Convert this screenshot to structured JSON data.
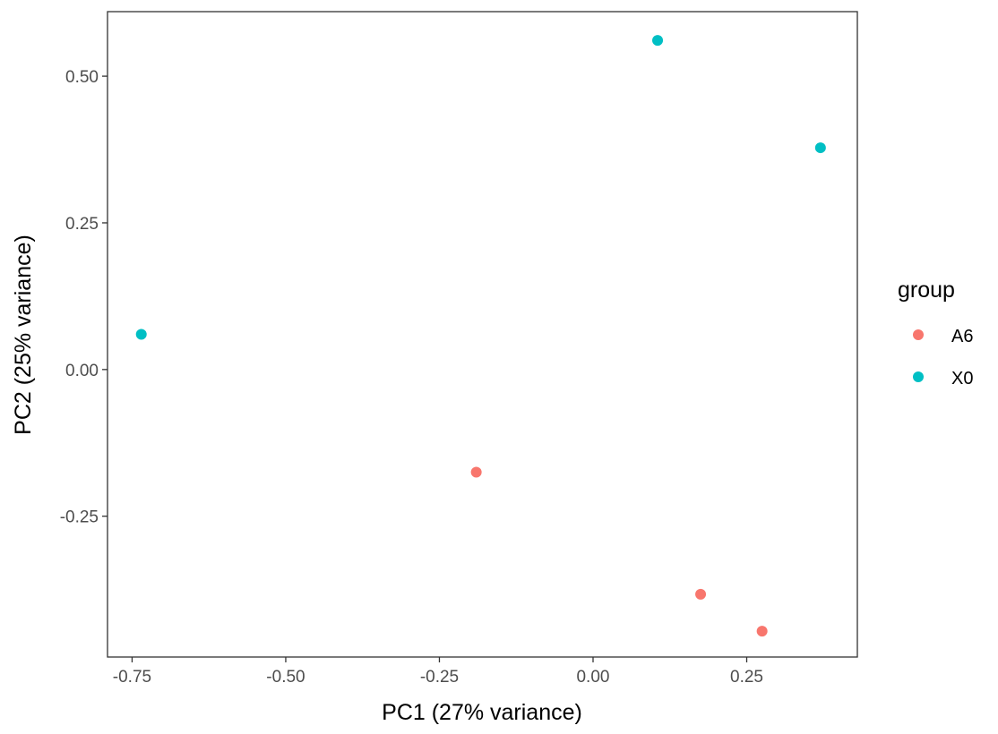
{
  "chart_data": {
    "type": "scatter",
    "title": "",
    "xlabel": "PC1 (27% variance)",
    "ylabel": "PC2 (25% variance)",
    "xlim": [
      -0.79,
      0.43
    ],
    "ylim": [
      -0.49,
      0.61
    ],
    "x_ticks": [
      -0.75,
      -0.5,
      -0.25,
      0.0,
      0.25
    ],
    "x_tick_labels": [
      "-0.75",
      "-0.50",
      "-0.25",
      "0.00",
      "0.25"
    ],
    "y_ticks": [
      -0.25,
      0.0,
      0.25,
      0.5
    ],
    "y_tick_labels": [
      "-0.25",
      "0.00",
      "0.25",
      "0.50"
    ],
    "grid": false,
    "legend": {
      "title": "group",
      "position": "right"
    },
    "series": [
      {
        "name": "A6",
        "color": "#F8766D",
        "points": [
          {
            "x": -0.19,
            "y": -0.175
          },
          {
            "x": 0.175,
            "y": -0.383
          },
          {
            "x": 0.275,
            "y": -0.446
          }
        ]
      },
      {
        "name": "X0",
        "color": "#00BFC4",
        "points": [
          {
            "x": -0.735,
            "y": 0.06
          },
          {
            "x": 0.105,
            "y": 0.561
          },
          {
            "x": 0.37,
            "y": 0.378
          }
        ]
      }
    ]
  }
}
